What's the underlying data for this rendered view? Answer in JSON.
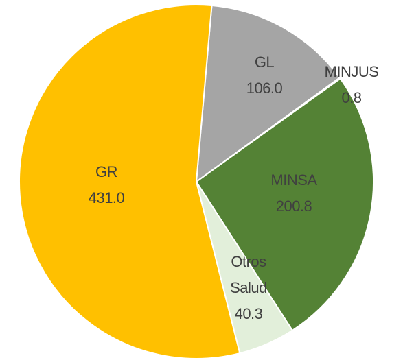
{
  "chart_data": {
    "type": "pie",
    "categories": [
      "GL",
      "MINJUS",
      "MINSA",
      "Otros Salud",
      "GR"
    ],
    "values": [
      106.0,
      0.8,
      200.8,
      40.3,
      431.0
    ],
    "value_labels": [
      "106.0",
      "0.8",
      "200.8",
      "40.3",
      "431.0"
    ],
    "colors": [
      "#a5a5a5",
      "#70ad47",
      "#548235",
      "#e2efda",
      "#ffc000"
    ]
  }
}
